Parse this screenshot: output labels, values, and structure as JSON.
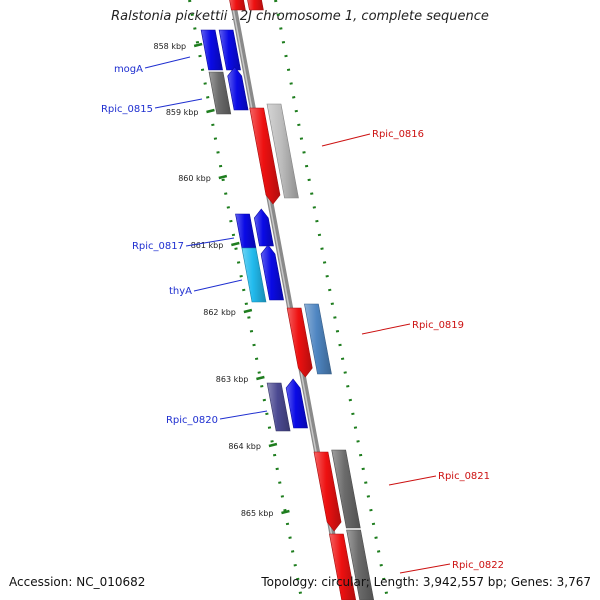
{
  "title": "Ralstonia pickettii 12J chromosome 1, complete sequence",
  "footer": {
    "accession": "Accession: NC_010682",
    "topology": "Topology: circular; Length: 3,942,557 bp; Genes: 3,767"
  },
  "colors": {
    "backbone": "#8a8a8a",
    "tick": "#1e7d1e",
    "forward_label": "#1f2fd0",
    "reverse_label": "#cc1111",
    "blue": "#0a0ae6",
    "red": "#ee1111",
    "gray": "#6b6b6b",
    "lightgray": "#bdbdbd",
    "cyan": "#22bbee",
    "steelblue": "#4f86c2",
    "slate": "#4c4a92"
  },
  "scale_labels": [
    "858 kbp",
    "859 kbp",
    "860 kbp",
    "861 kbp",
    "862 kbp",
    "863 kbp",
    "864 kbp",
    "865 kbp"
  ],
  "gene_labels": [
    {
      "text": "mogA",
      "strand": "forward"
    },
    {
      "text": "Rpic_0815",
      "strand": "forward"
    },
    {
      "text": "Rpic_0816",
      "strand": "reverse"
    },
    {
      "text": "Rpic_0817",
      "strand": "forward"
    },
    {
      "text": "thyA",
      "strand": "forward"
    },
    {
      "text": "Rpic_0819",
      "strand": "reverse"
    },
    {
      "text": "Rpic_0820",
      "strand": "forward"
    },
    {
      "text": "Rpic_0821",
      "strand": "reverse"
    },
    {
      "text": "Rpic_0822",
      "strand": "reverse"
    }
  ],
  "genes": [
    {
      "strand": "forward",
      "color": "blue",
      "label": "mogA"
    },
    {
      "strand": "forward",
      "color": "blue",
      "label": ""
    },
    {
      "strand": "forward",
      "color": "gray",
      "label": "Rpic_0815"
    },
    {
      "strand": "forward",
      "color": "blue",
      "label": ""
    },
    {
      "strand": "reverse",
      "color": "red",
      "label": ""
    },
    {
      "strand": "reverse",
      "color": "red",
      "label": ""
    },
    {
      "strand": "reverse",
      "color": "red",
      "label": "Rpic_0816"
    },
    {
      "strand": "reverse",
      "color": "lightgray",
      "label": ""
    },
    {
      "strand": "forward",
      "color": "blue",
      "label": "Rpic_0817"
    },
    {
      "strand": "forward",
      "color": "blue",
      "label": ""
    },
    {
      "strand": "forward",
      "color": "cyan",
      "label": "thyA"
    },
    {
      "strand": "forward",
      "color": "blue",
      "label": ""
    },
    {
      "strand": "reverse",
      "color": "red",
      "label": "Rpic_0819"
    },
    {
      "strand": "reverse",
      "color": "steelblue",
      "label": ""
    },
    {
      "strand": "forward",
      "color": "slate",
      "label": "Rpic_0820"
    },
    {
      "strand": "forward",
      "color": "blue",
      "label": ""
    },
    {
      "strand": "reverse",
      "color": "red",
      "label": "Rpic_0821"
    },
    {
      "strand": "reverse",
      "color": "gray",
      "label": ""
    },
    {
      "strand": "reverse",
      "color": "red",
      "label": "Rpic_0822"
    },
    {
      "strand": "reverse",
      "color": "gray",
      "label": ""
    }
  ]
}
